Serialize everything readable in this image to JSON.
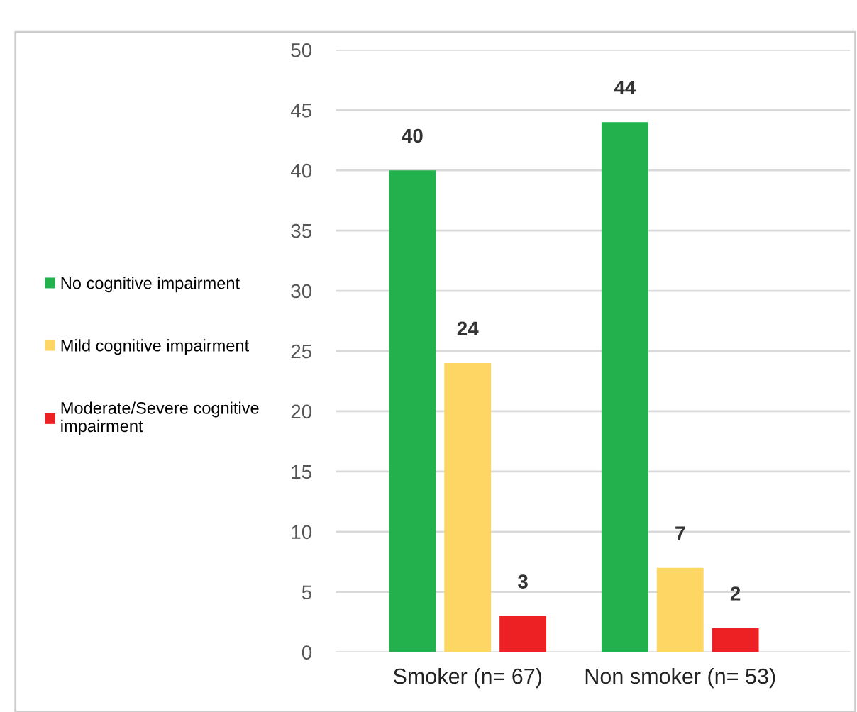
{
  "chart_data": {
    "type": "bar",
    "categories": [
      "Smoker (n= 67)",
      "Non smoker (n= 53)"
    ],
    "series": [
      {
        "name": "No cognitive impairment",
        "color": "#22b14c",
        "values": [
          40,
          44
        ]
      },
      {
        "name": "Mild cognitive impairment",
        "color": "#fdd663",
        "values": [
          24,
          7
        ]
      },
      {
        "name": "Moderate/Severe cognitive\nimpairment",
        "color": "#ed2024",
        "values": [
          3,
          2
        ]
      }
    ],
    "ylim": [
      0,
      50
    ],
    "yticks": [
      0,
      5,
      10,
      15,
      20,
      25,
      30,
      35,
      40,
      45,
      50
    ],
    "grid": "y",
    "legend": "left",
    "data_labels": true
  }
}
